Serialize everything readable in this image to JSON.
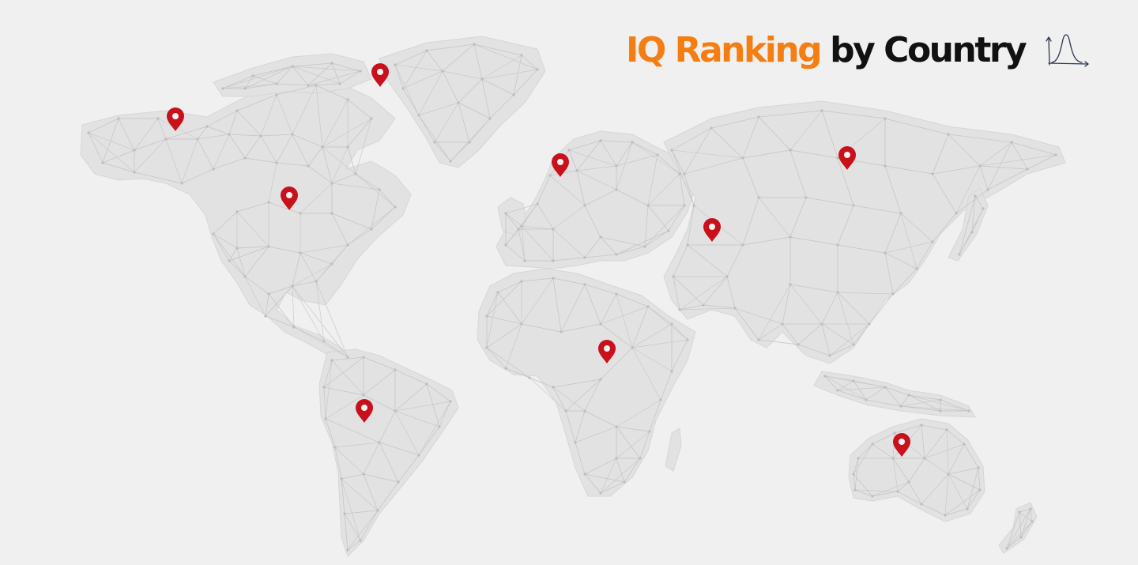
{
  "title": {
    "accent": "IQ Ranking",
    "main": "by Country"
  },
  "logo": {
    "icon": "bell-curve-icon"
  },
  "colors": {
    "background": "#f0f0f0",
    "land": "#e2e2e2",
    "mesh": "#c9c9c9",
    "title_accent": "#f57e12",
    "title_main": "#111111",
    "marker": "#c8111b",
    "marker_dot": "#f2f2f2"
  },
  "markers": [
    {
      "region": "alaska",
      "icon": "map-pin-icon"
    },
    {
      "region": "greenland",
      "icon": "map-pin-icon"
    },
    {
      "region": "canada",
      "icon": "map-pin-icon"
    },
    {
      "region": "scandinavia",
      "icon": "map-pin-icon"
    },
    {
      "region": "siberia",
      "icon": "map-pin-icon"
    },
    {
      "region": "central-asia",
      "icon": "map-pin-icon"
    },
    {
      "region": "central-africa",
      "icon": "map-pin-icon"
    },
    {
      "region": "south-america",
      "icon": "map-pin-icon"
    },
    {
      "region": "australia",
      "icon": "map-pin-icon"
    }
  ]
}
